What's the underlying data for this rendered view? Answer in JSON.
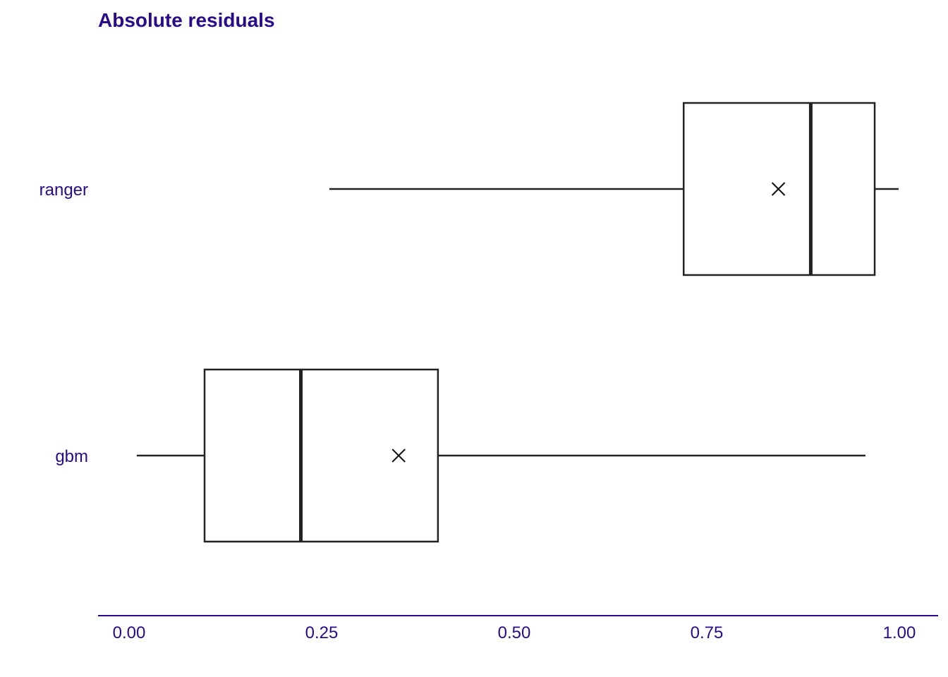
{
  "chart_data": {
    "type": "boxplot",
    "title": "Absolute residuals",
    "xlabel": "",
    "ylabel": "",
    "xlim": [
      -0.04,
      1.055
    ],
    "x_ticks": [
      0.0,
      0.25,
      0.5,
      0.75,
      1.0
    ],
    "x_tick_labels": [
      "0.00",
      "0.25",
      "0.50",
      "0.75",
      "1.00"
    ],
    "grid": false,
    "legend": "none",
    "categories": [
      "ranger",
      "gbm"
    ],
    "boxes": [
      {
        "category": "ranger",
        "whisker_low": 0.26,
        "q1": 0.72,
        "median": 0.885,
        "q3": 0.968,
        "whisker_high": 0.999,
        "mean": 0.843
      },
      {
        "category": "gbm",
        "whisker_low": 0.01,
        "q1": 0.098,
        "median": 0.223,
        "q3": 0.401,
        "whisker_high": 0.956,
        "mean": 0.35
      }
    ]
  },
  "colors": {
    "text": "#2a0a8a",
    "axis": "#2a0a8a",
    "box_stroke": "#222222",
    "mean_marker": "#111111",
    "background": "#ffffff"
  }
}
